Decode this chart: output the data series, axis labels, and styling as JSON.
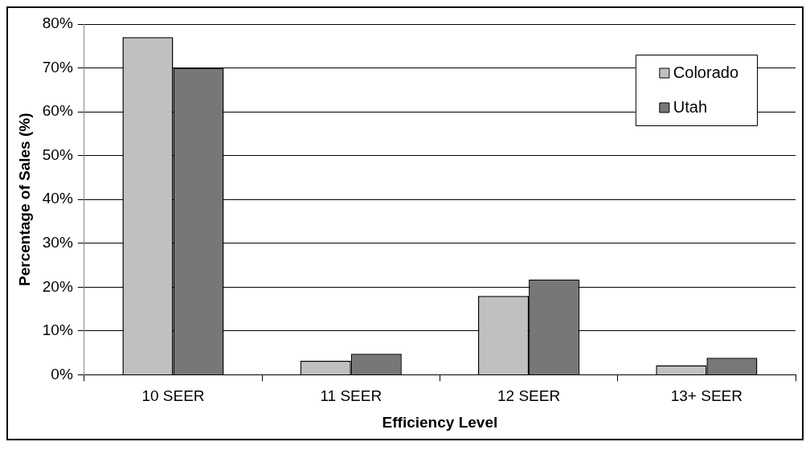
{
  "chart_data": {
    "type": "bar",
    "xlabel": "Efficiency Level",
    "ylabel": "Percentage of Sales (%)",
    "categories": [
      "10 SEER",
      "11 SEER",
      "12 SEER",
      "13+ SEER"
    ],
    "series": [
      {
        "name": "Colorado",
        "color": "#c0c0c0",
        "values": [
          77,
          3.2,
          18,
          2.2
        ]
      },
      {
        "name": "Utah",
        "color": "#777777",
        "values": [
          70,
          4.8,
          21.7,
          3.9
        ]
      }
    ],
    "ylim": [
      0,
      80
    ],
    "yticks": [
      {
        "value": 0,
        "label": "0%"
      },
      {
        "value": 10,
        "label": "10%"
      },
      {
        "value": 20,
        "label": "20%"
      },
      {
        "value": 30,
        "label": "30%"
      },
      {
        "value": 40,
        "label": "40%"
      },
      {
        "value": 50,
        "label": "50%"
      },
      {
        "value": 60,
        "label": "60%"
      },
      {
        "value": 70,
        "label": "70%"
      },
      {
        "value": 80,
        "label": "80%"
      }
    ],
    "grid": "y",
    "legend": "top right"
  }
}
